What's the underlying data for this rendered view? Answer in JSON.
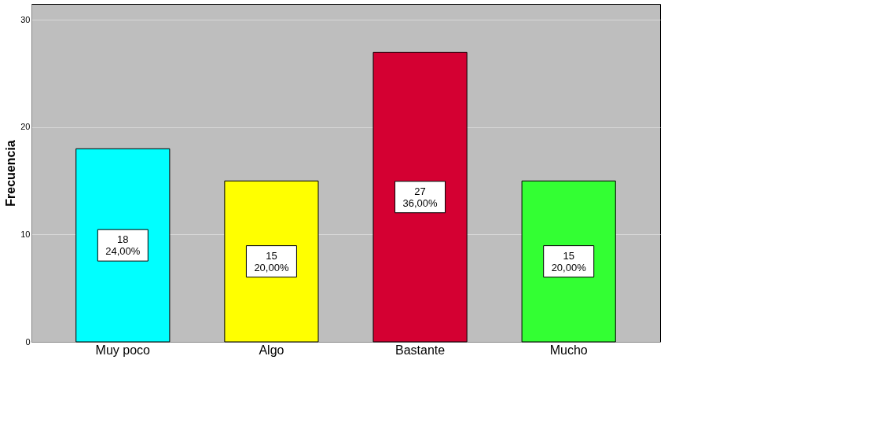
{
  "chart_data": {
    "type": "bar",
    "ylabel": "Frecuencia",
    "categories": [
      "Muy poco",
      "Algo",
      "Bastante",
      "Mucho"
    ],
    "values": [
      18,
      15,
      27,
      15
    ],
    "colors": [
      "#00ffff",
      "#ffff00",
      "#d40032",
      "#33ff33"
    ],
    "value_labels": [
      "18\n24,00%",
      "15\n20,00%",
      "27\n36,00%",
      "15\n20,00%"
    ],
    "ylim": [
      0,
      31.5
    ],
    "yticks": [
      0,
      10,
      20,
      30
    ],
    "grid": "y"
  }
}
